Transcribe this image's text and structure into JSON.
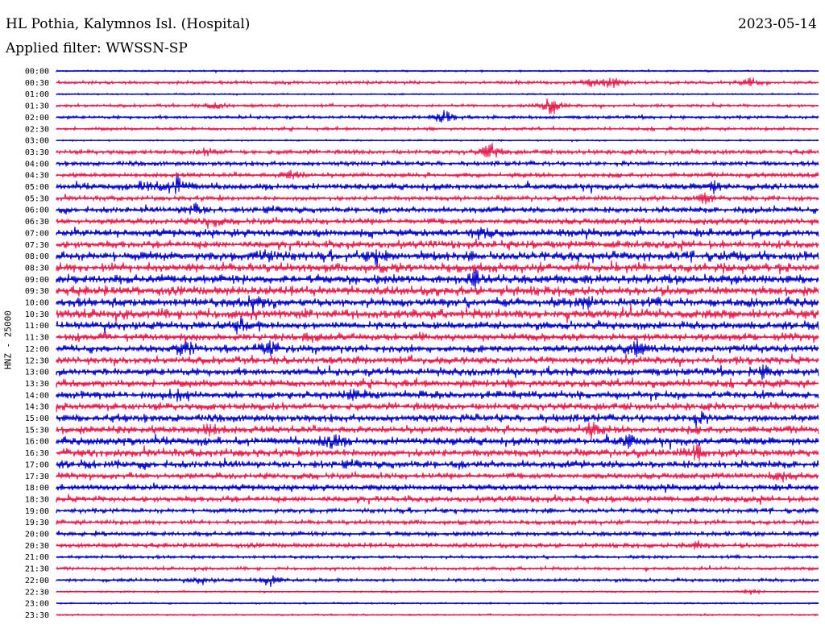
{
  "header": {
    "station": "HL Pothia, Kalymnos Isl. (Hospital)",
    "date": "2023-05-14",
    "filter": "Applied filter: WWSSN-SP"
  },
  "chart_data": {
    "type": "line",
    "title": "HL Pothia, Kalymnos Isl. (Hospital)",
    "ylabel": "HNZ - 25000",
    "rows": [
      "00:00",
      "00:30",
      "01:00",
      "01:30",
      "02:00",
      "02:30",
      "03:00",
      "03:30",
      "04:00",
      "04:30",
      "05:00",
      "05:30",
      "06:00",
      "06:30",
      "07:00",
      "07:30",
      "08:00",
      "08:30",
      "09:00",
      "09:30",
      "10:00",
      "10:30",
      "11:00",
      "11:30",
      "12:00",
      "12:30",
      "13:00",
      "13:30",
      "14:00",
      "14:30",
      "15:00",
      "15:30",
      "16:00",
      "16:30",
      "17:00",
      "17:30",
      "18:00",
      "18:30",
      "19:00",
      "19:30",
      "20:00",
      "20:30",
      "21:00",
      "21:30",
      "22:00",
      "22:30",
      "23:00",
      "23:30"
    ],
    "row_colors": [
      "#0000cc",
      "#e8194a"
    ],
    "noise_level": [
      1,
      2,
      1,
      2,
      2,
      2,
      1,
      3,
      3,
      3,
      4,
      3,
      4,
      4,
      5,
      5,
      6,
      6,
      6,
      6,
      6,
      6,
      5,
      5,
      5,
      5,
      5,
      5,
      5,
      5,
      5,
      5,
      5,
      5,
      5,
      4,
      4,
      4,
      3,
      3,
      3,
      3,
      2,
      2,
      2,
      1,
      1,
      1
    ],
    "events": [
      {
        "row": 1,
        "pos": 0.7,
        "amp": 6
      },
      {
        "row": 1,
        "pos": 0.73,
        "amp": 8
      },
      {
        "row": 1,
        "pos": 0.91,
        "amp": 6
      },
      {
        "row": 3,
        "pos": 0.21,
        "amp": 5
      },
      {
        "row": 3,
        "pos": 0.65,
        "amp": 12
      },
      {
        "row": 4,
        "pos": 0.51,
        "amp": 10
      },
      {
        "row": 7,
        "pos": 0.57,
        "amp": 12
      },
      {
        "row": 7,
        "pos": 0.2,
        "amp": 5
      },
      {
        "row": 9,
        "pos": 0.31,
        "amp": 8
      },
      {
        "row": 10,
        "pos": 0.12,
        "amp": 10
      },
      {
        "row": 10,
        "pos": 0.16,
        "amp": 14
      },
      {
        "row": 10,
        "pos": 0.86,
        "amp": 8
      },
      {
        "row": 11,
        "pos": 0.85,
        "amp": 8
      },
      {
        "row": 12,
        "pos": 0.18,
        "amp": 10
      },
      {
        "row": 13,
        "pos": 0.2,
        "amp": 8
      },
      {
        "row": 14,
        "pos": 0.56,
        "amp": 12
      },
      {
        "row": 16,
        "pos": 0.28,
        "amp": 10
      },
      {
        "row": 16,
        "pos": 0.42,
        "amp": 7
      },
      {
        "row": 18,
        "pos": 0.55,
        "amp": 9
      },
      {
        "row": 20,
        "pos": 0.26,
        "amp": 11
      },
      {
        "row": 20,
        "pos": 0.7,
        "amp": 7
      },
      {
        "row": 22,
        "pos": 0.24,
        "amp": 8
      },
      {
        "row": 24,
        "pos": 0.17,
        "amp": 10
      },
      {
        "row": 24,
        "pos": 0.28,
        "amp": 7
      },
      {
        "row": 24,
        "pos": 0.76,
        "amp": 10
      },
      {
        "row": 26,
        "pos": 0.93,
        "amp": 8
      },
      {
        "row": 28,
        "pos": 0.16,
        "amp": 10
      },
      {
        "row": 28,
        "pos": 0.39,
        "amp": 8
      },
      {
        "row": 30,
        "pos": 0.84,
        "amp": 8
      },
      {
        "row": 31,
        "pos": 0.2,
        "amp": 9
      },
      {
        "row": 31,
        "pos": 0.7,
        "amp": 9
      },
      {
        "row": 32,
        "pos": 0.36,
        "amp": 11
      },
      {
        "row": 32,
        "pos": 0.75,
        "amp": 8
      },
      {
        "row": 33,
        "pos": 0.84,
        "amp": 9
      },
      {
        "row": 35,
        "pos": 0.95,
        "amp": 6
      },
      {
        "row": 41,
        "pos": 0.84,
        "amp": 6
      },
      {
        "row": 44,
        "pos": 0.28,
        "amp": 8
      },
      {
        "row": 44,
        "pos": 0.19,
        "amp": 5
      },
      {
        "row": 45,
        "pos": 0.91,
        "amp": 5
      }
    ]
  }
}
